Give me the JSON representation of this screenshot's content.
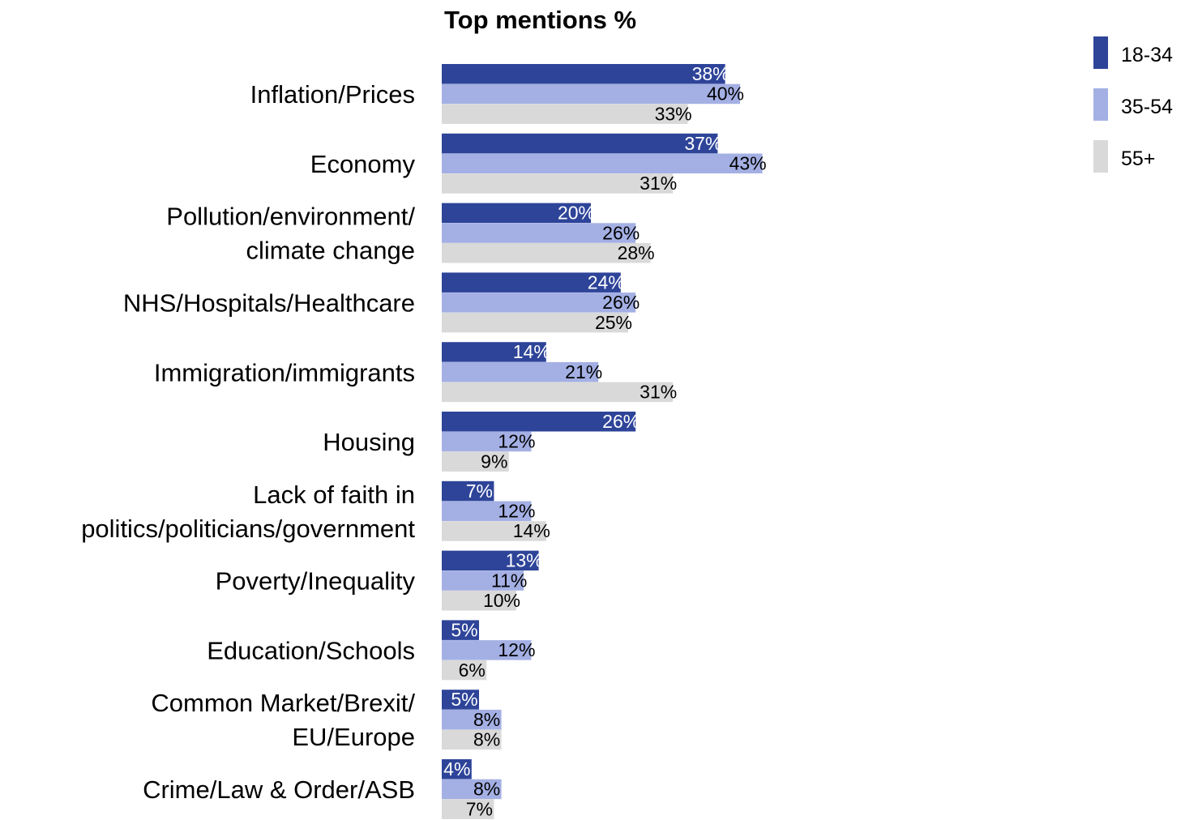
{
  "chart_data": {
    "type": "bar",
    "orientation": "horizontal",
    "title": "Top mentions %",
    "value_suffix": "%",
    "categories": [
      [
        "Inflation/Prices"
      ],
      [
        "Economy"
      ],
      [
        "Pollution/environment/",
        "climate change"
      ],
      [
        "NHS/Hospitals/Healthcare"
      ],
      [
        "Immigration/immigrants"
      ],
      [
        "Housing"
      ],
      [
        "Lack of faith in",
        "politics/politicians/government"
      ],
      [
        "Poverty/Inequality"
      ],
      [
        "Education/Schools"
      ],
      [
        "Common Market/Brexit/",
        "EU/Europe"
      ],
      [
        "Crime/Law & Order/ASB"
      ]
    ],
    "series": [
      {
        "name": "18-34",
        "color": "#2e4499",
        "label_color": "#ffffff",
        "values": [
          38,
          37,
          20,
          24,
          14,
          26,
          7,
          13,
          5,
          5,
          4
        ]
      },
      {
        "name": "35-54",
        "color": "#a4b0e4",
        "label_color": "#000000",
        "values": [
          40,
          43,
          26,
          26,
          21,
          12,
          12,
          11,
          12,
          8,
          8
        ]
      },
      {
        "name": "55+",
        "color": "#d9d9d9",
        "label_color": "#000000",
        "values": [
          33,
          31,
          28,
          25,
          31,
          9,
          14,
          10,
          6,
          8,
          7
        ]
      }
    ],
    "legend_position": "top-right",
    "grid": false
  }
}
